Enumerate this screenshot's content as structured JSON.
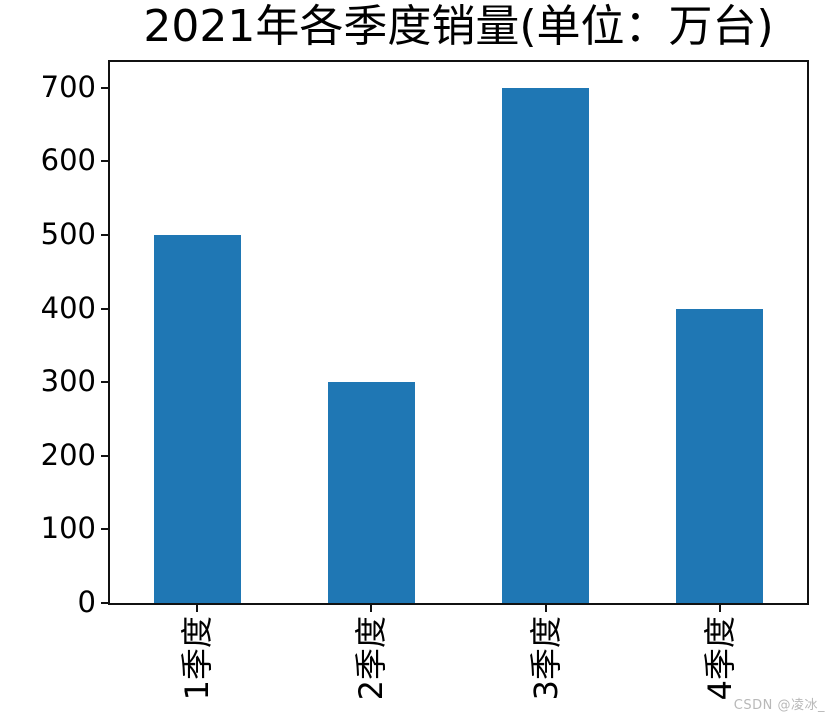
{
  "chart_data": {
    "type": "bar",
    "title": "2021年各季度销量(单位：万台)",
    "categories": [
      "1季度",
      "2季度",
      "3季度",
      "4季度"
    ],
    "values": [
      500,
      300,
      700,
      400
    ],
    "yticks": [
      0,
      100,
      200,
      300,
      400,
      500,
      600,
      700
    ],
    "ylim": [
      0,
      735
    ],
    "xlabel": "",
    "ylabel": "",
    "bar_color": "#1f77b4",
    "axis_color": "#111111",
    "text_color": "#000000",
    "grid": false,
    "legend_position": "none",
    "x_tick_rotation_deg": 90
  },
  "watermark": {
    "text": "CSDN @凌冰_",
    "color": "#b8b8b8"
  }
}
